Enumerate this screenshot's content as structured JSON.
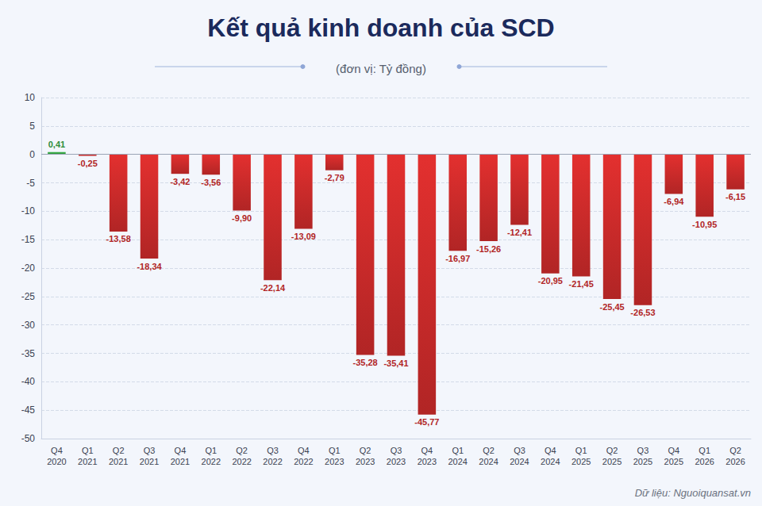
{
  "chart_data": {
    "type": "bar",
    "title": "Kết quả kinh doanh của SCD",
    "subtitle": "(đơn vị: Tỷ đồng)",
    "source": "Dữ liệu: Nguoiquansat.vn",
    "categories": [
      "Q4 2020",
      "Q1 2021",
      "Q2 2021",
      "Q3 2021",
      "Q4 2021",
      "Q1 2022",
      "Q2 2022",
      "Q3 2022",
      "Q4 2022",
      "Q1 2023",
      "Q2 2023",
      "Q3 2023",
      "Q4 2023",
      "Q1 2024",
      "Q2 2024",
      "Q3 2024",
      "Q4 2024",
      "Q1 2025",
      "Q2 2025",
      "Q3 2025",
      "Q4 2025",
      "Q1 2026",
      "Q2 2026"
    ],
    "values": [
      0.41,
      -0.25,
      -13.58,
      -18.34,
      -3.42,
      -3.56,
      -9.9,
      -22.14,
      -13.09,
      -2.79,
      -35.28,
      -35.41,
      -45.77,
      -16.97,
      -15.26,
      -12.41,
      -20.95,
      -21.45,
      -25.45,
      -26.53,
      -6.94,
      -10.95,
      -6.15
    ],
    "value_labels": [
      "0,41",
      "-0,25",
      "-13,58",
      "-18,34",
      "-3,42",
      "-3,56",
      "-9,90",
      "-22,14",
      "-13,09",
      "-2,79",
      "-35,28",
      "-35,41",
      "-45,77",
      "-16,97",
      "-15,26",
      "-12,41",
      "-20,95",
      "-21,45",
      "-25,45",
      "-26,53",
      "-6,94",
      "-10,95",
      "-6,15"
    ],
    "colors": [
      "#3bb54a",
      "#e3302f",
      "#e3302f",
      "#e3302f",
      "#e3302f",
      "#e3302f",
      "#e3302f",
      "#e3302f",
      "#e3302f",
      "#e3302f",
      "#e3302f",
      "#e3302f",
      "#e3302f",
      "#e3302f",
      "#e3302f",
      "#e3302f",
      "#e3302f",
      "#e3302f",
      "#e3302f",
      "#e3302f",
      "#e3302f",
      "#e3302f",
      "#e3302f"
    ],
    "ylim": [
      -50,
      10
    ],
    "yticks": [
      -50,
      -45,
      -40,
      -35,
      -30,
      -25,
      -20,
      -15,
      -10,
      -5,
      0,
      5,
      10
    ],
    "grid": true,
    "data_labels": true
  }
}
